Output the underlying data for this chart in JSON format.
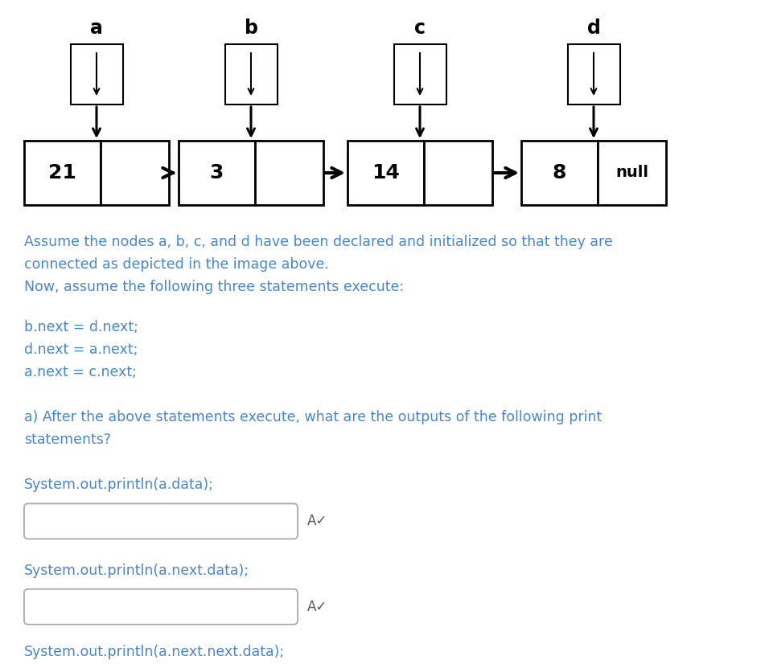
{
  "bg_color": "#ffffff",
  "node_labels": [
    "a",
    "b",
    "c",
    "d"
  ],
  "node_values": [
    "21",
    "3",
    "14",
    "8"
  ],
  "node_null": "null",
  "text_color": "#4a86c8",
  "box_color": "#000000",
  "arrow_color": "#000000",
  "line1": "Assume the nodes a, b, c, and d have been declared and initialized so that they are",
  "line2": "connected as depicted in the image above.",
  "line3": "Now, assume the following three statements execute:",
  "code1": "b.next = d.next;",
  "code2": "d.next = a.next;",
  "code3": "a.next = c.next;",
  "question1": "a) After the above statements execute, what are the outputs of the following print",
  "question2": "statements?",
  "println1": "System.out.println(a.data);",
  "println2": "System.out.println(a.next.data);",
  "println3": "System.out.println(a.next.next.data);",
  "figsize": [
    9.51,
    8.26
  ],
  "dpi": 100
}
